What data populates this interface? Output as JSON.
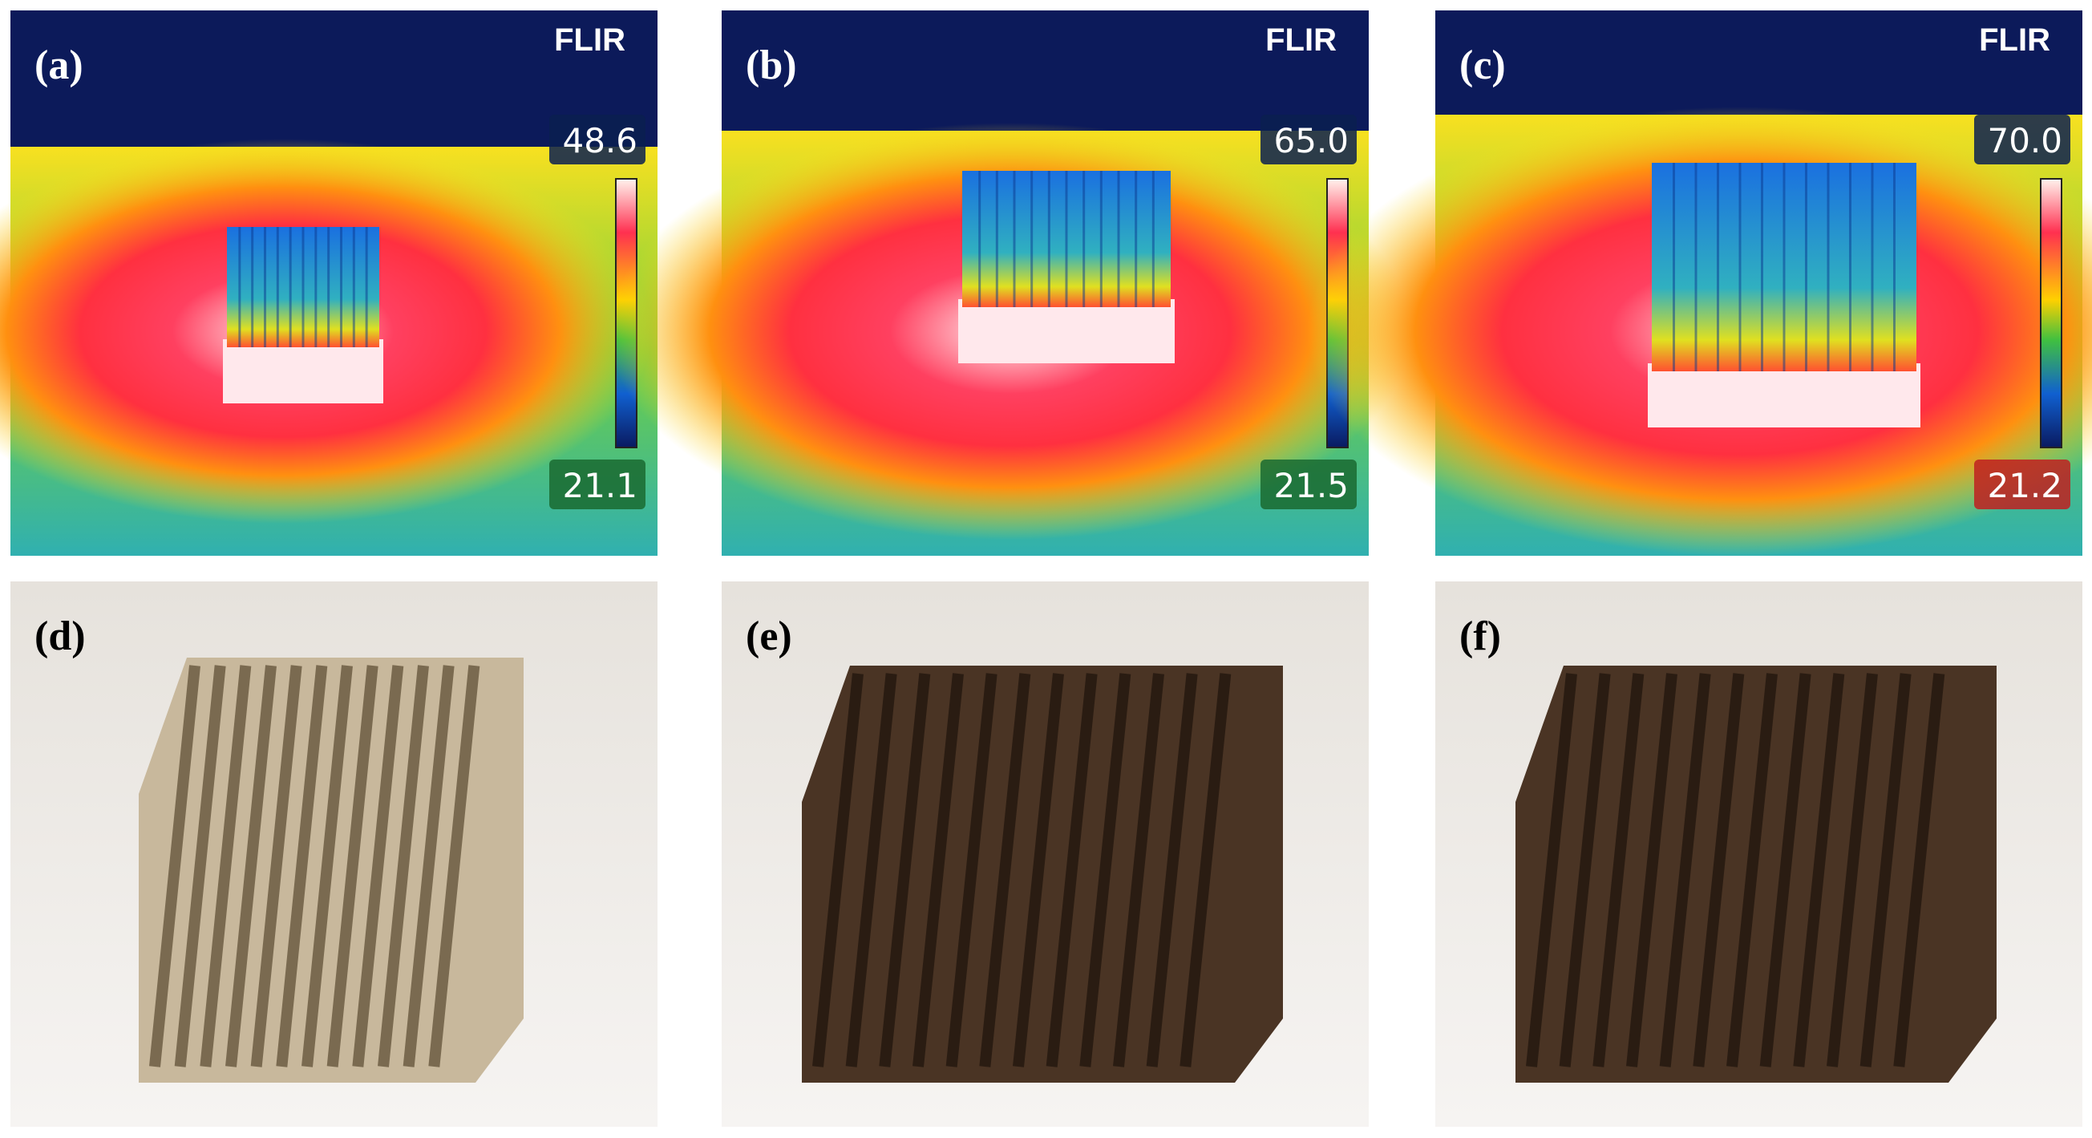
{
  "panels": [
    {
      "label": "(a)",
      "brand": "FLIR",
      "scale_max": "48.6",
      "scale_min": "21.1"
    },
    {
      "label": "(b)",
      "brand": "FLIR",
      "scale_max": "65.0",
      "scale_min": "21.5"
    },
    {
      "label": "(c)",
      "brand": "FLIR",
      "scale_max": "70.0",
      "scale_min": "21.2"
    },
    {
      "label": "(d)"
    },
    {
      "label": "(e)"
    },
    {
      "label": "(f)"
    }
  ]
}
